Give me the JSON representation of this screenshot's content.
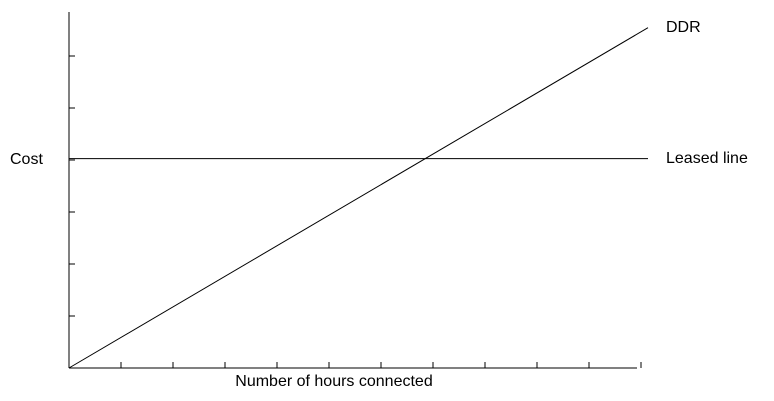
{
  "chart_data": {
    "type": "line",
    "title": "",
    "xlabel": "Number of hours connected",
    "ylabel": "Cost",
    "x_ticks": 11,
    "y_ticks": 6,
    "x_domain": [
      0,
      11
    ],
    "y_domain": [
      0,
      6.8
    ],
    "grid": false,
    "series": [
      {
        "name": "DDR",
        "x": [
          0,
          11
        ],
        "y": [
          0,
          6.5
        ]
      },
      {
        "name": "Leased line",
        "x": [
          0,
          11
        ],
        "y": [
          4,
          4
        ]
      }
    ],
    "colors": {
      "axis": "#000000",
      "line": "#000000"
    }
  }
}
